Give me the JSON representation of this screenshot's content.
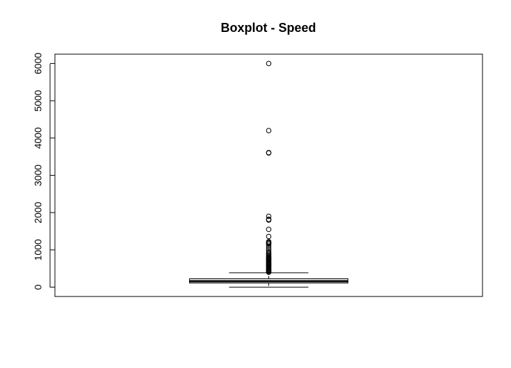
{
  "chart_data": {
    "type": "boxplot",
    "title": "Boxplot - Speed",
    "xlabel": "",
    "ylabel": "",
    "ylim": [
      -250,
      6250
    ],
    "yticks": [
      0,
      1000,
      2000,
      3000,
      4000,
      5000,
      6000
    ],
    "ytick_labels": [
      "0",
      "1000",
      "2000",
      "3000",
      "4000",
      "5000",
      "6000"
    ],
    "grid": false,
    "legend": "none",
    "box": {
      "lower_whisker": 0,
      "q1": 110,
      "median": 160,
      "q3": 225,
      "upper_whisker": 385
    },
    "outliers": [
      400,
      420,
      440,
      460,
      480,
      500,
      520,
      540,
      560,
      580,
      600,
      620,
      640,
      660,
      680,
      700,
      720,
      740,
      760,
      780,
      800,
      820,
      850,
      880,
      910,
      950,
      1000,
      1050,
      1100,
      1150,
      1180,
      1200,
      1220,
      1360,
      1550,
      1800,
      1820,
      1900,
      3600,
      3610,
      4200,
      6000
    ],
    "colors": {
      "box_fill": "#ffffff",
      "stroke": "#000000"
    }
  }
}
